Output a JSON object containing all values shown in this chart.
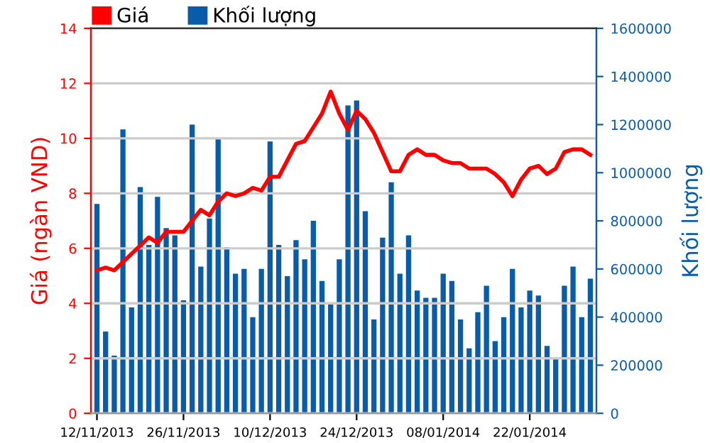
{
  "chart_data": {
    "type": "bar",
    "categories": [
      "12/11/2013",
      null,
      null,
      null,
      null,
      null,
      null,
      null,
      null,
      null,
      "26/11/2013",
      null,
      null,
      null,
      null,
      null,
      null,
      null,
      null,
      null,
      "10/12/2013",
      null,
      null,
      null,
      null,
      null,
      null,
      null,
      null,
      null,
      "24/12/2013",
      null,
      null,
      null,
      null,
      null,
      null,
      null,
      null,
      null,
      "08/01/2014",
      null,
      null,
      null,
      null,
      null,
      null,
      null,
      null,
      null,
      "22/01/2014",
      null,
      null,
      null,
      null,
      null,
      null,
      null
    ],
    "series": [
      {
        "name": "Giá",
        "type": "line",
        "color": "#ff0000",
        "values": [
          5.2,
          5.3,
          5.2,
          5.5,
          5.8,
          6.1,
          6.4,
          6.2,
          6.6,
          6.6,
          6.6,
          7.0,
          7.4,
          7.2,
          7.7,
          8.0,
          7.9,
          8.0,
          8.2,
          8.1,
          8.6,
          8.6,
          9.2,
          9.8,
          9.9,
          10.4,
          10.9,
          11.7,
          10.9,
          10.3,
          11.0,
          10.7,
          10.2,
          9.5,
          8.8,
          8.8,
          9.4,
          9.6,
          9.4,
          9.4,
          9.2,
          9.1,
          9.1,
          8.9,
          8.9,
          8.9,
          8.7,
          8.4,
          7.9,
          8.5,
          8.9,
          9.0,
          8.7,
          8.9,
          9.5,
          9.6,
          9.6,
          9.4
        ]
      },
      {
        "name": "Khối lượng",
        "axis": "y2",
        "color": "#0a5ca8",
        "values": [
          870000,
          340000,
          240000,
          1180000,
          440000,
          940000,
          700000,
          900000,
          770000,
          740000,
          470000,
          1200000,
          610000,
          810000,
          1140000,
          690000,
          580000,
          600000,
          400000,
          600000,
          1130000,
          700000,
          570000,
          720000,
          640000,
          800000,
          550000,
          460000,
          640000,
          1280000,
          1300000,
          840000,
          390000,
          730000,
          960000,
          580000,
          740000,
          510000,
          480000,
          480000,
          580000,
          550000,
          390000,
          270000,
          420000,
          530000,
          300000,
          400000,
          600000,
          440000,
          510000,
          490000,
          280000,
          230000,
          530000,
          610000,
          400000,
          560000
        ]
      }
    ],
    "ylabel": "Giá (ngàn VND)",
    "y2label": "Khối lượng",
    "ylim": [
      0,
      14
    ],
    "yticks": [
      0,
      2,
      4,
      6,
      8,
      10,
      12,
      14
    ],
    "y2lim": [
      0,
      1600000
    ],
    "y2ticks": [
      0,
      200000,
      400000,
      600000,
      800000,
      1000000,
      1200000,
      1400000,
      1600000
    ],
    "grid": "y",
    "legend": "top left"
  }
}
